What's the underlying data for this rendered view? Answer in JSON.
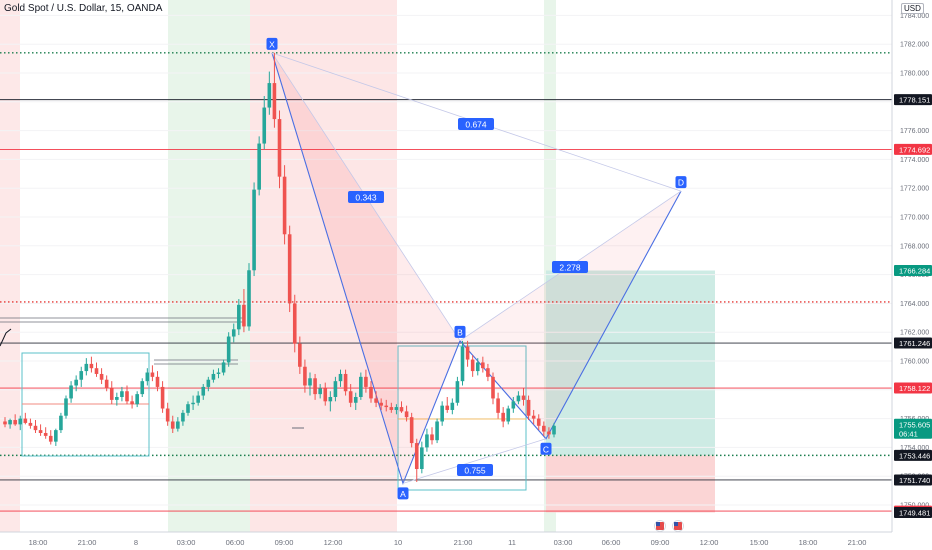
{
  "header": {
    "symbol_title": "Gold Spot / U.S. Dollar, 15, OANDA",
    "currency": "USD"
  },
  "chart_data": {
    "type": "candlestick",
    "title": "Gold Spot / U.S. Dollar, 15, OANDA",
    "currency": "USD",
    "y_range": [
      1749,
      1785
    ],
    "y_ticks": [
      "1784.000",
      "1782.000",
      "1780.000",
      "1778.000",
      "1776.000",
      "1774.000",
      "1772.000",
      "1770.000",
      "1768.000",
      "1766.000",
      "1764.000",
      "1762.000",
      "1760.000",
      "1758.000",
      "1756.000",
      "1754.000",
      "1752.000",
      "1750.000"
    ],
    "x_ticks": [
      "18:00",
      "21:00",
      "8",
      "03:00",
      "06:00",
      "09:00",
      "12:00",
      "10",
      "21:00",
      "11",
      "03:00",
      "06:00",
      "09:00",
      "12:00",
      "15:00",
      "18:00",
      "21:00"
    ],
    "price_labels": [
      {
        "value": 1778.151,
        "label": "1778.151",
        "style": "dark"
      },
      {
        "value": 1774.692,
        "label": "1774.692",
        "style": "red"
      },
      {
        "value": 1766.284,
        "label": "1766.284",
        "style": "teal"
      },
      {
        "value": 1761.246,
        "label": "1761.246",
        "style": "dark"
      },
      {
        "value": 1758.122,
        "label": "1758.122",
        "style": "red"
      },
      {
        "value": 1755.605,
        "label": "1755.605",
        "sublabel": "06:41",
        "style": "teal"
      },
      {
        "value": 1753.446,
        "label": "1753.446",
        "style": "dark"
      },
      {
        "value": 1751.74,
        "label": "1751.740",
        "style": "dark"
      },
      {
        "value": 1749.576,
        "label": "1749.576",
        "style": "red"
      },
      {
        "value": 1749.481,
        "label": "1749.481",
        "style": "dark"
      }
    ],
    "horizontal_lines": [
      {
        "value": 1781.4,
        "style": "green-dotted"
      },
      {
        "value": 1778.151,
        "style": "black"
      },
      {
        "value": 1774.692,
        "style": "red"
      },
      {
        "value": 1764.1,
        "style": "red-dotted"
      },
      {
        "value": 1761.246,
        "style": "black"
      },
      {
        "value": 1758.122,
        "style": "red"
      },
      {
        "value": 1753.446,
        "style": "green-dotted"
      },
      {
        "value": 1751.74,
        "style": "black"
      },
      {
        "value": 1749.576,
        "style": "red"
      }
    ],
    "harmonic_pattern": {
      "points": [
        {
          "label": "X",
          "value": 1781.4
        },
        {
          "label": "A",
          "value": 1751.5
        },
        {
          "label": "B",
          "value": 1761.4
        },
        {
          "label": "C",
          "value": 1754.6
        },
        {
          "label": "D",
          "value": 1771.8
        }
      ],
      "ratios": [
        "0.343",
        "0.674",
        "0.755",
        "2.278"
      ]
    },
    "position": {
      "entry": 1753.446,
      "target": 1766.284,
      "stop": 1749.481
    },
    "candles": [
      [
        1755.8,
        1756.1,
        1755.4,
        1755.6
      ],
      [
        1755.6,
        1756.0,
        1755.3,
        1755.9
      ],
      [
        1755.9,
        1756.3,
        1755.5,
        1755.6
      ],
      [
        1755.6,
        1756.2,
        1755.2,
        1756.0
      ],
      [
        1756.0,
        1756.4,
        1755.6,
        1755.7
      ],
      [
        1755.7,
        1756.0,
        1755.3,
        1755.5
      ],
      [
        1755.5,
        1755.9,
        1755.0,
        1755.2
      ],
      [
        1755.2,
        1755.6,
        1754.8,
        1755.0
      ],
      [
        1755.0,
        1755.4,
        1754.6,
        1754.8
      ],
      [
        1754.8,
        1755.2,
        1754.2,
        1754.4
      ],
      [
        1754.4,
        1755.3,
        1754.1,
        1755.2
      ],
      [
        1755.2,
        1756.4,
        1755.0,
        1756.2
      ],
      [
        1756.2,
        1757.6,
        1756.0,
        1757.4
      ],
      [
        1757.4,
        1758.6,
        1757.1,
        1758.3
      ],
      [
        1758.3,
        1759.0,
        1757.9,
        1758.7
      ],
      [
        1758.7,
        1759.6,
        1758.2,
        1759.3
      ],
      [
        1759.3,
        1760.2,
        1759.0,
        1759.8
      ],
      [
        1759.8,
        1760.3,
        1759.2,
        1759.5
      ],
      [
        1759.5,
        1759.9,
        1758.9,
        1759.1
      ],
      [
        1759.1,
        1759.5,
        1758.4,
        1758.7
      ],
      [
        1758.7,
        1759.0,
        1757.9,
        1758.1
      ],
      [
        1758.1,
        1758.6,
        1757.0,
        1757.3
      ],
      [
        1757.3,
        1757.8,
        1756.9,
        1757.5
      ],
      [
        1757.5,
        1758.2,
        1757.2,
        1757.9
      ],
      [
        1757.9,
        1758.3,
        1757.0,
        1757.2
      ],
      [
        1757.2,
        1757.6,
        1756.7,
        1757.0
      ],
      [
        1757.0,
        1757.9,
        1756.8,
        1757.7
      ],
      [
        1757.7,
        1758.8,
        1757.5,
        1758.6
      ],
      [
        1758.6,
        1759.5,
        1758.3,
        1759.2
      ],
      [
        1759.2,
        1759.7,
        1758.6,
        1758.9
      ],
      [
        1758.9,
        1759.3,
        1757.9,
        1758.2
      ],
      [
        1758.2,
        1758.6,
        1756.4,
        1756.7
      ],
      [
        1756.7,
        1757.1,
        1755.5,
        1755.8
      ],
      [
        1755.8,
        1756.2,
        1755.0,
        1755.3
      ],
      [
        1755.3,
        1756.1,
        1755.1,
        1755.8
      ],
      [
        1755.8,
        1756.6,
        1755.5,
        1756.4
      ],
      [
        1756.4,
        1757.2,
        1756.2,
        1757.0
      ],
      [
        1757.0,
        1757.6,
        1756.6,
        1757.1
      ],
      [
        1757.1,
        1757.9,
        1756.9,
        1757.6
      ],
      [
        1757.6,
        1758.4,
        1757.3,
        1758.2
      ],
      [
        1758.2,
        1758.9,
        1757.9,
        1758.7
      ],
      [
        1758.7,
        1759.4,
        1758.5,
        1759.1
      ],
      [
        1759.1,
        1759.5,
        1758.8,
        1759.2
      ],
      [
        1759.2,
        1760.1,
        1759.0,
        1759.9
      ],
      [
        1759.9,
        1762.0,
        1759.6,
        1761.7
      ],
      [
        1761.7,
        1762.6,
        1761.3,
        1762.2
      ],
      [
        1762.2,
        1764.3,
        1761.8,
        1763.9
      ],
      [
        1763.9,
        1765.0,
        1762.0,
        1762.4
      ],
      [
        1762.4,
        1766.8,
        1762.1,
        1766.3
      ],
      [
        1766.3,
        1772.4,
        1765.9,
        1771.9
      ],
      [
        1771.9,
        1775.6,
        1771.5,
        1775.1
      ],
      [
        1775.1,
        1778.4,
        1774.7,
        1777.6
      ],
      [
        1777.6,
        1780.1,
        1777.1,
        1779.3
      ],
      [
        1779.3,
        1781.4,
        1776.2,
        1776.8
      ],
      [
        1776.8,
        1777.4,
        1772.0,
        1772.8
      ],
      [
        1772.8,
        1773.6,
        1768.1,
        1768.8
      ],
      [
        1768.8,
        1769.4,
        1763.4,
        1764.0
      ],
      [
        1764.0,
        1764.6,
        1760.6,
        1761.2
      ],
      [
        1761.2,
        1761.7,
        1759.1,
        1759.6
      ],
      [
        1759.6,
        1760.1,
        1757.8,
        1758.3
      ],
      [
        1758.3,
        1759.2,
        1757.6,
        1758.8
      ],
      [
        1758.8,
        1759.1,
        1757.3,
        1757.7
      ],
      [
        1757.7,
        1758.4,
        1757.4,
        1758.1
      ],
      [
        1758.1,
        1758.5,
        1756.9,
        1757.2
      ],
      [
        1757.2,
        1757.9,
        1756.5,
        1757.5
      ],
      [
        1757.5,
        1758.9,
        1757.2,
        1758.6
      ],
      [
        1758.6,
        1759.4,
        1758.2,
        1759.1
      ],
      [
        1759.1,
        1759.4,
        1757.6,
        1757.9
      ],
      [
        1757.9,
        1758.4,
        1756.8,
        1757.1
      ],
      [
        1757.1,
        1757.8,
        1756.6,
        1757.5
      ],
      [
        1757.5,
        1759.2,
        1757.3,
        1758.9
      ],
      [
        1758.9,
        1759.4,
        1757.8,
        1758.2
      ],
      [
        1758.2,
        1758.6,
        1757.1,
        1757.4
      ],
      [
        1757.4,
        1757.9,
        1756.8,
        1757.1
      ],
      [
        1757.1,
        1757.4,
        1756.6,
        1756.9
      ],
      [
        1756.9,
        1757.3,
        1756.5,
        1756.8
      ],
      [
        1756.8,
        1757.1,
        1756.4,
        1756.6
      ],
      [
        1756.6,
        1757.0,
        1756.3,
        1756.8
      ],
      [
        1756.8,
        1757.2,
        1756.4,
        1756.5
      ],
      [
        1756.5,
        1756.9,
        1755.8,
        1756.1
      ],
      [
        1756.1,
        1756.4,
        1754.0,
        1754.3
      ],
      [
        1754.3,
        1754.6,
        1751.6,
        1752.5
      ],
      [
        1752.5,
        1754.4,
        1752.2,
        1754.0
      ],
      [
        1754.0,
        1755.3,
        1753.7,
        1754.9
      ],
      [
        1754.9,
        1755.4,
        1754.2,
        1754.5
      ],
      [
        1754.5,
        1756.0,
        1754.3,
        1755.8
      ],
      [
        1755.8,
        1757.2,
        1755.5,
        1756.9
      ],
      [
        1756.9,
        1757.5,
        1756.4,
        1756.6
      ],
      [
        1756.6,
        1757.4,
        1756.3,
        1757.1
      ],
      [
        1757.1,
        1758.9,
        1756.9,
        1758.6
      ],
      [
        1758.6,
        1761.4,
        1758.3,
        1761.0
      ],
      [
        1761.0,
        1761.4,
        1759.6,
        1760.1
      ],
      [
        1760.1,
        1760.4,
        1758.9,
        1759.3
      ],
      [
        1759.3,
        1760.2,
        1759.0,
        1759.9
      ],
      [
        1759.9,
        1760.3,
        1759.2,
        1759.5
      ],
      [
        1759.5,
        1759.8,
        1758.6,
        1758.9
      ],
      [
        1758.9,
        1759.2,
        1757.0,
        1757.4
      ],
      [
        1757.4,
        1757.8,
        1756.0,
        1756.4
      ],
      [
        1756.4,
        1756.8,
        1755.4,
        1755.8
      ],
      [
        1755.8,
        1756.9,
        1755.6,
        1756.7
      ],
      [
        1756.7,
        1757.5,
        1756.4,
        1757.2
      ],
      [
        1757.2,
        1757.9,
        1757.0,
        1757.6
      ],
      [
        1757.6,
        1758.1,
        1756.9,
        1757.3
      ],
      [
        1757.3,
        1757.6,
        1755.9,
        1756.2
      ],
      [
        1756.2,
        1756.6,
        1755.6,
        1756.0
      ],
      [
        1756.0,
        1756.3,
        1755.2,
        1755.5
      ],
      [
        1755.5,
        1755.8,
        1754.8,
        1755.1
      ],
      [
        1755.1,
        1755.4,
        1754.6,
        1754.9
      ],
      [
        1754.9,
        1755.7,
        1754.7,
        1755.5
      ]
    ]
  }
}
